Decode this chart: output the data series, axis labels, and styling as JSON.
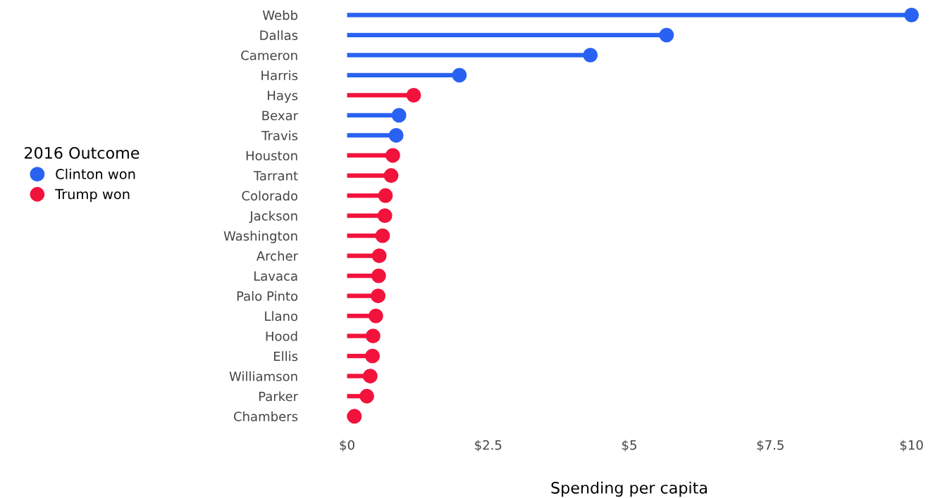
{
  "chart_data": {
    "type": "lollipop",
    "orientation": "horizontal",
    "xlabel": "Spending per capita",
    "legend_title": "2016 Outcome",
    "legend": "left",
    "categories": [
      "Webb",
      "Dallas",
      "Cameron",
      "Harris",
      "Hays",
      "Bexar",
      "Travis",
      "Houston",
      "Tarrant",
      "Colorado",
      "Jackson",
      "Washington",
      "Archer",
      "Lavaca",
      "Palo Pinto",
      "Llano",
      "Hood",
      "Ellis",
      "Williamson",
      "Parker",
      "Chambers"
    ],
    "series": [
      {
        "name": "Clinton won",
        "color": "#2962f2",
        "values": [
          10.0,
          5.66,
          4.31,
          1.99,
          null,
          0.92,
          0.87,
          null,
          null,
          null,
          null,
          null,
          null,
          null,
          null,
          null,
          null,
          null,
          null,
          null,
          null
        ]
      },
      {
        "name": "Trump won",
        "color": "#f2133c",
        "values": [
          null,
          null,
          null,
          null,
          1.18,
          null,
          null,
          0.81,
          0.78,
          0.68,
          0.67,
          0.63,
          0.57,
          0.56,
          0.55,
          0.51,
          0.46,
          0.45,
          0.41,
          0.35,
          0.13
        ]
      }
    ],
    "xlim": [
      0,
      10
    ],
    "xticks": [
      {
        "value": 0,
        "label": "$0"
      },
      {
        "value": 2.5,
        "label": "$2.5"
      },
      {
        "value": 5,
        "label": "$5"
      },
      {
        "value": 7.5,
        "label": "$7.5"
      },
      {
        "value": 10,
        "label": "$10"
      }
    ],
    "grid": false,
    "marker": "circle"
  }
}
